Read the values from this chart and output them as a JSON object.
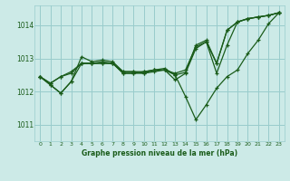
{
  "bg_color": "#cceae7",
  "grid_color": "#99cccc",
  "line_color": "#1a5c1a",
  "marker_color": "#1a5c1a",
  "title": "Graphe pression niveau de la mer (hPa)",
  "ylim": [
    1010.5,
    1014.6
  ],
  "xlim": [
    -0.5,
    23.5
  ],
  "yticks": [
    1011,
    1012,
    1013,
    1014
  ],
  "xticks": [
    0,
    1,
    2,
    3,
    4,
    5,
    6,
    7,
    8,
    9,
    10,
    11,
    12,
    13,
    14,
    15,
    16,
    17,
    18,
    19,
    20,
    21,
    22,
    23
  ],
  "series": [
    [
      1012.45,
      1012.25,
      1012.45,
      1012.55,
      1012.85,
      1012.85,
      1012.85,
      1012.85,
      1012.55,
      1012.55,
      1012.55,
      1012.6,
      1012.65,
      1012.35,
      1012.55,
      1013.3,
      1013.5,
      1012.85,
      1013.85,
      1014.1,
      1014.2,
      1014.25,
      1014.3,
      1014.38
    ],
    [
      1012.45,
      1012.25,
      1012.45,
      1012.6,
      1012.85,
      1012.85,
      1012.85,
      1012.85,
      1012.55,
      1012.55,
      1012.6,
      1012.65,
      1012.7,
      1012.5,
      1012.58,
      1013.4,
      1013.55,
      1012.85,
      1013.85,
      1014.1,
      1014.2,
      1014.25,
      1014.3,
      1014.38
    ],
    [
      1012.45,
      1012.2,
      1011.95,
      1012.3,
      1013.05,
      1012.9,
      1012.95,
      1012.9,
      1012.6,
      1012.6,
      1012.6,
      1012.65,
      1012.65,
      1012.55,
      1012.65,
      1013.35,
      1013.5,
      1012.55,
      1013.4,
      1014.1,
      1014.2,
      1014.25,
      1014.3,
      1014.38
    ],
    [
      1012.45,
      1012.2,
      1011.95,
      1012.3,
      1012.85,
      1012.85,
      1012.9,
      1012.85,
      1012.6,
      1012.6,
      1012.55,
      1012.65,
      1012.65,
      1012.5,
      1011.85,
      1011.15,
      1011.6,
      1012.1,
      1012.45,
      1012.65,
      1013.15,
      1013.55,
      1014.05,
      1014.38
    ]
  ]
}
